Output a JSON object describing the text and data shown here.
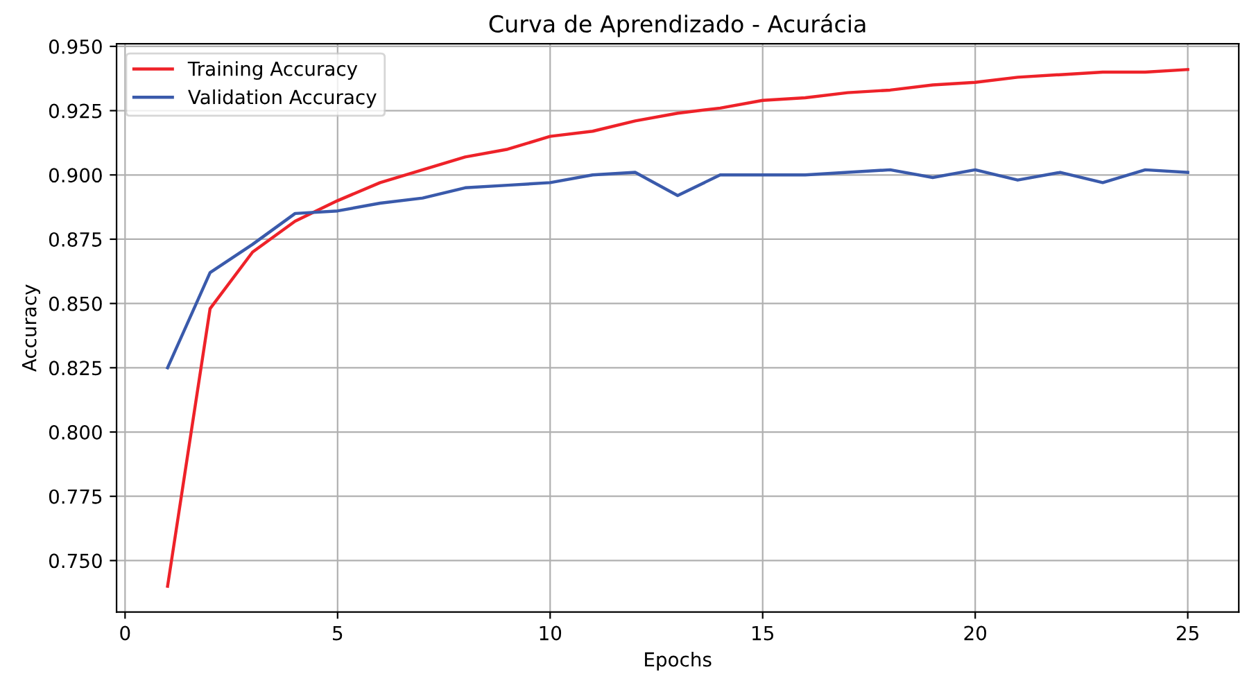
{
  "chart_data": {
    "type": "line",
    "title": "Curva de Aprendizado - Acurácia",
    "xlabel": "Epochs",
    "ylabel": "Accuracy",
    "x": [
      1,
      2,
      3,
      4,
      5,
      6,
      7,
      8,
      9,
      10,
      11,
      12,
      13,
      14,
      15,
      16,
      17,
      18,
      19,
      20,
      21,
      22,
      23,
      24,
      25
    ],
    "series": [
      {
        "name": "Training Accuracy",
        "color": "#ee2229",
        "values": [
          0.74,
          0.848,
          0.87,
          0.882,
          0.89,
          0.897,
          0.902,
          0.907,
          0.91,
          0.915,
          0.917,
          0.921,
          0.924,
          0.926,
          0.929,
          0.93,
          0.932,
          0.933,
          0.935,
          0.936,
          0.938,
          0.939,
          0.94,
          0.94,
          0.941
        ]
      },
      {
        "name": "Validation Accuracy",
        "color": "#3a5aab",
        "values": [
          0.825,
          0.862,
          0.873,
          0.885,
          0.886,
          0.889,
          0.891,
          0.895,
          0.896,
          0.897,
          0.9,
          0.901,
          0.892,
          0.9,
          0.9,
          0.9,
          0.901,
          0.902,
          0.899,
          0.902,
          0.898,
          0.901,
          0.897,
          0.902,
          0.901
        ]
      }
    ],
    "xlim": [
      -0.2,
      26.2
    ],
    "ylim": [
      0.73,
      0.951
    ],
    "xticks": [
      0,
      5,
      10,
      15,
      20,
      25
    ],
    "yticks": [
      {
        "value": 0.75,
        "label": "0.750"
      },
      {
        "value": 0.775,
        "label": "0.775"
      },
      {
        "value": 0.8,
        "label": "0.800"
      },
      {
        "value": 0.825,
        "label": "0.825"
      },
      {
        "value": 0.85,
        "label": "0.850"
      },
      {
        "value": 0.875,
        "label": "0.875"
      },
      {
        "value": 0.9,
        "label": "0.900"
      },
      {
        "value": 0.925,
        "label": "0.925"
      },
      {
        "value": 0.95,
        "label": "0.950"
      }
    ],
    "grid": true,
    "legend": "top left",
    "marker": "none",
    "line_style": "solid"
  }
}
